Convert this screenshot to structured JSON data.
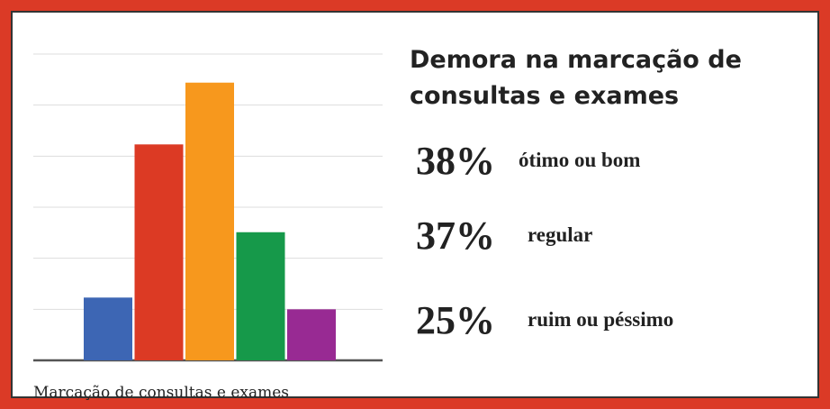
{
  "chart_data": {
    "type": "bar",
    "categories": [
      null,
      null,
      null,
      null,
      null
    ],
    "values": [
      1.23,
      4.23,
      5.44,
      2.51,
      1.0
    ],
    "colors": [
      "#3d66b4",
      "#dc3a24",
      "#f7981d",
      "#16994a",
      "#982a93"
    ],
    "ylim": [
      0,
      6
    ],
    "yticks": [
      0,
      1,
      2,
      3,
      4,
      5,
      6
    ],
    "grid": true,
    "xlabel": "Marcação de consultas e exames"
  },
  "panel": {
    "title": "Demora na marcação de consultas e exames",
    "values": [
      38,
      37,
      25
    ],
    "value_labels": [
      "38%",
      "37%",
      "25%"
    ],
    "labels": [
      "ótimo ou bom",
      "regular",
      "ruim ou péssimo"
    ]
  }
}
